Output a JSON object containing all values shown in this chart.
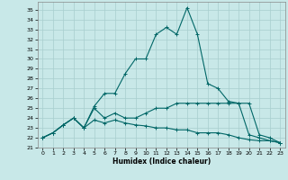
{
  "xlabel": "Humidex (Indice chaleur)",
  "xlim": [
    -0.5,
    23.5
  ],
  "ylim": [
    21.0,
    35.8
  ],
  "yticks": [
    21,
    22,
    23,
    24,
    25,
    26,
    27,
    28,
    29,
    30,
    31,
    32,
    33,
    34,
    35
  ],
  "xticks": [
    0,
    1,
    2,
    3,
    4,
    5,
    6,
    7,
    8,
    9,
    10,
    11,
    12,
    13,
    14,
    15,
    16,
    17,
    18,
    19,
    20,
    21,
    22,
    23
  ],
  "background_color": "#c8e8e8",
  "grid_color": "#a8cece",
  "line_color": "#006666",
  "line1_y": [
    22.0,
    22.5,
    23.3,
    24.0,
    23.0,
    25.2,
    26.5,
    26.5,
    28.5,
    30.0,
    30.0,
    32.5,
    33.2,
    32.5,
    35.2,
    32.5,
    27.5,
    27.0,
    25.7,
    25.5,
    22.3,
    22.0,
    21.7,
    21.5
  ],
  "line2_y": [
    22.0,
    22.5,
    23.3,
    24.0,
    23.0,
    25.0,
    24.0,
    24.5,
    24.0,
    24.0,
    24.5,
    25.0,
    25.0,
    25.5,
    25.5,
    25.5,
    25.5,
    25.5,
    25.5,
    25.5,
    25.5,
    22.3,
    22.0,
    21.5
  ],
  "line3_y": [
    22.0,
    22.5,
    23.3,
    24.0,
    23.0,
    23.8,
    23.5,
    23.8,
    23.5,
    23.3,
    23.2,
    23.0,
    23.0,
    22.8,
    22.8,
    22.5,
    22.5,
    22.5,
    22.3,
    22.0,
    21.8,
    21.7,
    21.7,
    21.5
  ]
}
